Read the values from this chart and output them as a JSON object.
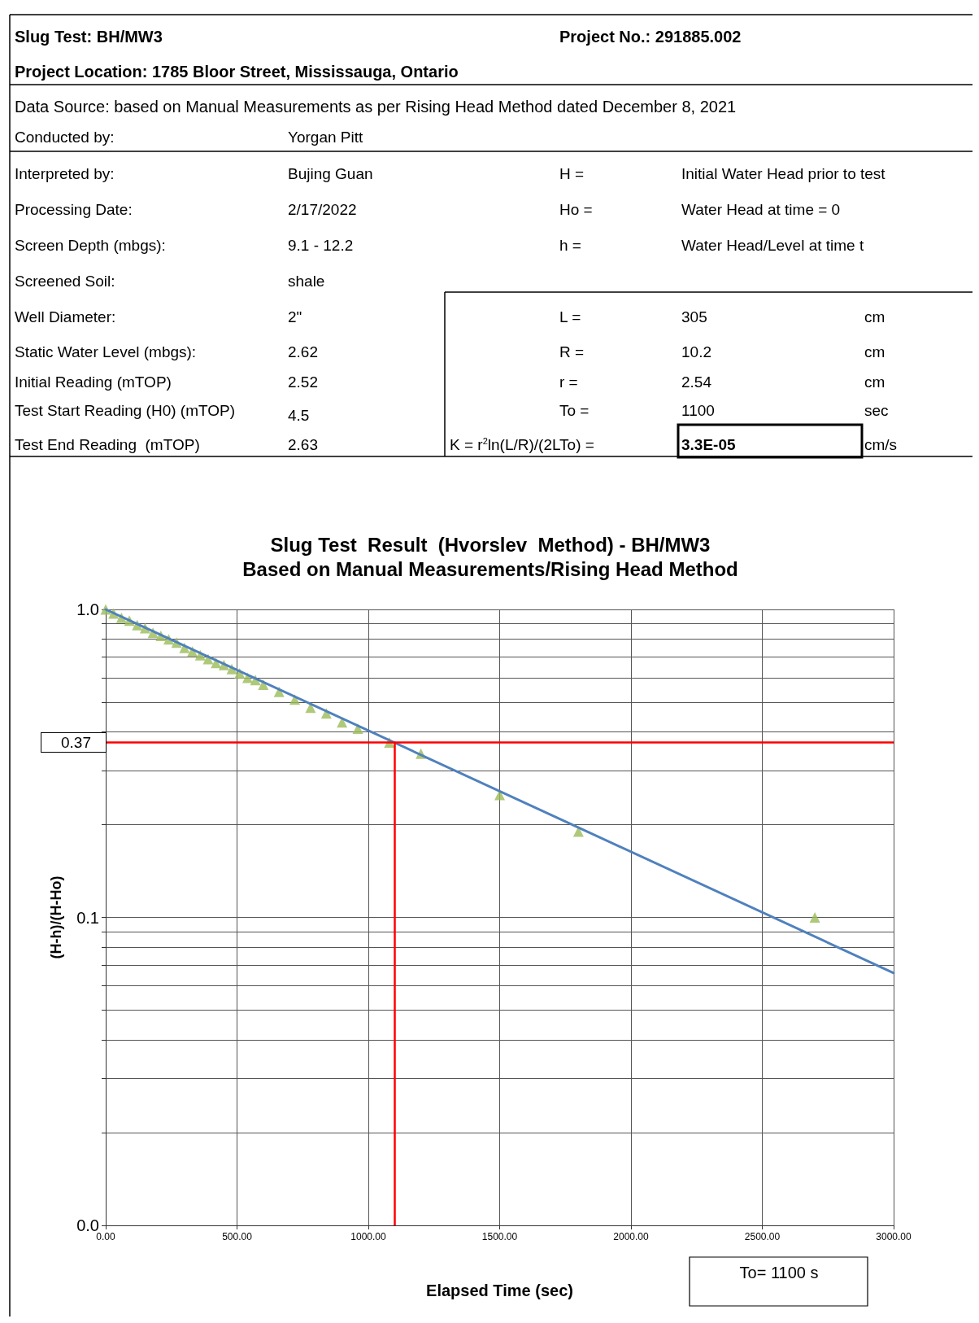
{
  "chart_data": {
    "type": "scatter",
    "title": "Slug Test  Result  (Hvorslev  Method) - BH/MW3",
    "subtitle": "Based on Manual Measurements/Rising Head Method",
    "xlabel": "Elapsed Time (sec)",
    "ylabel": "(H-h)/(H-Ho)",
    "annotations": [
      "Slug Test: BH/MW3",
      "Project No.: 291885.002",
      "Project Location: 1785 Bloor Street, Mississauga, Ontario",
      "Data Source: based on Manual Measurements as per Rising Head Method dated December 8, 2021",
      "Conducted by:",
      "Yorgan Pitt",
      "Interpreted by:",
      "Bujing Guan",
      "H =",
      "Initial Water Head prior to test",
      "Processing Date:",
      "2/17/2022",
      "Ho =",
      "Water Head at time = 0",
      "Screen Depth (mbgs):",
      "9.1 - 12.2",
      "h =",
      "Water Head/Level at time t",
      "Screened Soil:",
      "shale",
      "Well Diameter:",
      "2\"",
      "L =",
      "305",
      "cm",
      "Static Water Level (mbgs):",
      "2.62",
      "R =",
      "10.2",
      "cm",
      "Initial Reading (mTOP)",
      "2.52",
      "r =",
      "2.54",
      "cm",
      "Test Start Reading (H0) (mTOP)",
      "4.5",
      "To =",
      "1100",
      "sec",
      "Test End Reading  (mTOP)",
      "2.63",
      "K = r$^{2}$ln(L/R)/(2LTo) =",
      "3.3E-05",
      "cm/s",
      "To= 1100 s"
    ],
    "series": [
      {
        "color": "#9bbb59",
        "marker": "triangle",
        "x": [
          0,
          30,
          60,
          90,
          120,
          150,
          180,
          210,
          240,
          270,
          300,
          330,
          360,
          390,
          420,
          450,
          480,
          510,
          540,
          570,
          600,
          660,
          720,
          780,
          840,
          900,
          960,
          1080,
          1200,
          1500,
          1800,
          2700
        ],
        "values": [
          1.0,
          0.97,
          0.94,
          0.92,
          0.89,
          0.87,
          0.84,
          0.82,
          0.8,
          0.78,
          0.75,
          0.73,
          0.71,
          0.69,
          0.67,
          0.66,
          0.64,
          0.62,
          0.6,
          0.59,
          0.57,
          0.54,
          0.51,
          0.48,
          0.46,
          0.43,
          0.41,
          0.37,
          0.34,
          0.25,
          0.19,
          0.1
        ]
      },
      {
        "type": "line",
        "color": "#4f81bd",
        "marker": "none",
        "x": [
          0,
          3000
        ],
        "values": [
          1.0,
          0.066
        ]
      }
    ],
    "ref_lines": [
      {
        "axis": "y",
        "value": 0.37,
        "label": "0.37",
        "color": "#ff0000"
      },
      {
        "axis": "x",
        "value": 1100,
        "color": "#ff0000"
      }
    ],
    "log": "y",
    "grid": true,
    "xlim": [
      0,
      3000
    ],
    "xticks": [
      {
        "value": 0,
        "label": "0.00"
      },
      {
        "value": 500,
        "label": "500.00"
      },
      {
        "value": 1000,
        "label": "1000.00"
      },
      {
        "value": 1500,
        "label": "1500.00"
      },
      {
        "value": 2000,
        "label": "2000.00"
      },
      {
        "value": 2500,
        "label": "2500.00"
      },
      {
        "value": 3000,
        "label": "3000.00"
      }
    ],
    "ylim": [
      0.01,
      1
    ],
    "yticks": [
      {
        "value": 0.01,
        "label": "0.0"
      },
      {
        "value": 0.02,
        "label": null
      },
      {
        "value": 0.03,
        "label": null
      },
      {
        "value": 0.04,
        "label": null
      },
      {
        "value": 0.05,
        "label": null
      },
      {
        "value": 0.06,
        "label": null
      },
      {
        "value": 0.07,
        "label": null
      },
      {
        "value": 0.08,
        "label": null
      },
      {
        "value": 0.09,
        "label": null
      },
      {
        "value": 0.1,
        "label": "0.1"
      },
      {
        "value": 0.2,
        "label": null
      },
      {
        "value": 0.3,
        "label": null
      },
      {
        "value": 0.4,
        "label": null
      },
      {
        "value": 0.5,
        "label": null
      },
      {
        "value": 0.6,
        "label": null
      },
      {
        "value": 0.7,
        "label": null
      },
      {
        "value": 0.8,
        "label": null
      },
      {
        "value": 0.9,
        "label": null
      },
      {
        "value": 1,
        "label": "1.0"
      }
    ]
  }
}
